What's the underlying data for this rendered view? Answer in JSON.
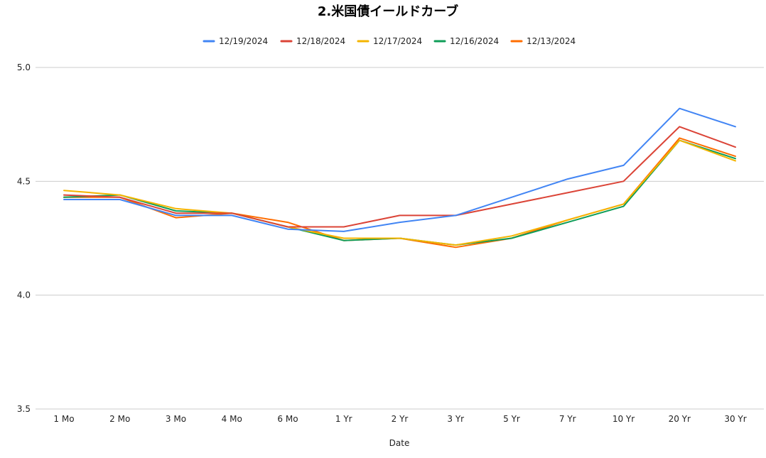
{
  "chart_data": {
    "type": "line",
    "title": "2.米国債イールドカーブ",
    "xlabel": "Date",
    "ylabel": "",
    "ylim": [
      3.5,
      5.0
    ],
    "yticks": [
      "3.5",
      "4.0",
      "4.5",
      "5.0"
    ],
    "grid": true,
    "legend_position": "top",
    "categories": [
      "1 Mo",
      "2 Mo",
      "3 Mo",
      "4 Mo",
      "6 Mo",
      "1 Yr",
      "2 Yr",
      "3 Yr",
      "5 Yr",
      "7 Yr",
      "10 Yr",
      "20 Yr",
      "30 Yr"
    ],
    "series": [
      {
        "name": "12/19/2024",
        "color": "#4285F4",
        "values": [
          4.42,
          4.42,
          4.35,
          4.35,
          4.29,
          4.28,
          4.32,
          4.35,
          4.43,
          4.51,
          4.57,
          4.82,
          4.74
        ]
      },
      {
        "name": "12/18/2024",
        "color": "#DB4437",
        "values": [
          4.44,
          4.43,
          4.36,
          4.36,
          4.3,
          4.3,
          4.35,
          4.35,
          4.4,
          4.45,
          4.5,
          4.74,
          4.65
        ]
      },
      {
        "name": "12/17/2024",
        "color": "#F4B400",
        "values": [
          4.46,
          4.44,
          4.38,
          4.36,
          4.3,
          4.25,
          4.25,
          4.22,
          4.26,
          4.33,
          4.4,
          4.68,
          4.59
        ]
      },
      {
        "name": "12/16/2024",
        "color": "#0F9D58",
        "values": [
          4.43,
          4.44,
          4.37,
          4.36,
          4.3,
          4.24,
          4.25,
          4.22,
          4.25,
          4.32,
          4.39,
          4.68,
          4.6
        ]
      },
      {
        "name": "12/13/2024",
        "color": "#FF6D00",
        "values": [
          4.43,
          4.43,
          4.34,
          4.36,
          4.32,
          4.24,
          4.25,
          4.21,
          4.25,
          4.33,
          4.4,
          4.69,
          4.61
        ]
      }
    ]
  }
}
